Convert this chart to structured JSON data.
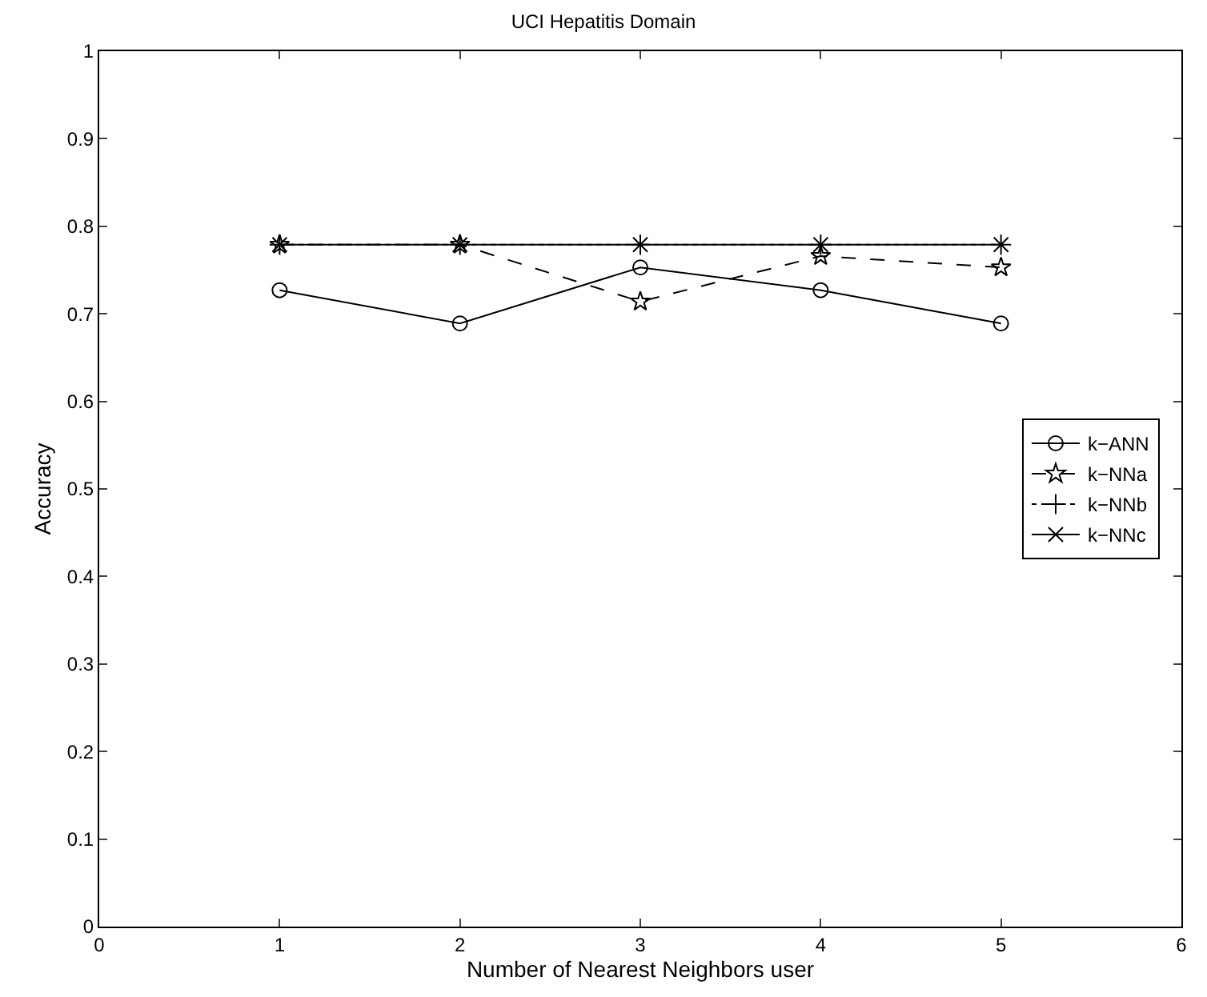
{
  "chart_data": {
    "type": "line",
    "title": "UCI Hepatitis Domain",
    "xlabel": "Number of Nearest Neighbors user",
    "ylabel": "Accuracy",
    "x": [
      1,
      2,
      3,
      4,
      5
    ],
    "series": [
      {
        "name": "k−ANN",
        "color": "#000000",
        "marker": "circle",
        "line_style": "solid",
        "values": [
          0.727,
          0.689,
          0.753,
          0.727,
          0.689
        ]
      },
      {
        "name": "k−NNa",
        "color": "#000000",
        "marker": "star",
        "line_style": "dashed",
        "values": [
          0.779,
          0.779,
          0.714,
          0.766,
          0.753
        ]
      },
      {
        "name": "k−NNb",
        "color": "#000000",
        "marker": "cross",
        "line_style": "dotted",
        "values": [
          0.779,
          0.779,
          0.779,
          0.779,
          0.779
        ]
      },
      {
        "name": "k−NNc",
        "color": "#000000",
        "marker": "x",
        "line_style": "solid",
        "values": [
          0.779,
          0.779,
          0.779,
          0.779,
          0.779
        ]
      }
    ],
    "xlim": [
      0,
      6
    ],
    "xticks": [
      0,
      1,
      2,
      3,
      4,
      5,
      6
    ],
    "ylim": [
      0,
      1
    ],
    "yticks": [
      0,
      0.1,
      0.2,
      0.3,
      0.4,
      0.5,
      0.6,
      0.7,
      0.8,
      0.9,
      1
    ],
    "grid": false,
    "legend": "right"
  }
}
